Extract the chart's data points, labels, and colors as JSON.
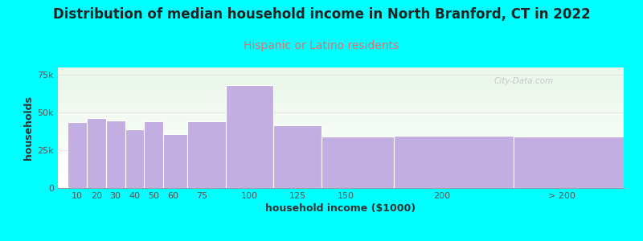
{
  "title": "Distribution of median household income in North Branford, CT in 2022",
  "subtitle": "Hispanic or Latino residents",
  "xlabel": "household income ($1000)",
  "ylabel": "households",
  "bar_color": "#c2aee0",
  "background_color": "#00ffff",
  "ylim": [
    0,
    80000
  ],
  "yticks": [
    0,
    25000,
    50000,
    75000
  ],
  "ytick_labels": [
    "0",
    "25k",
    "50k",
    "75k"
  ],
  "xtick_labels": [
    "10",
    "20",
    "30",
    "40",
    "50",
    "60",
    "75",
    "100",
    "125",
    "150",
    "200",
    "> 200"
  ],
  "bar_lefts": [
    5,
    15,
    25,
    35,
    45,
    55,
    67.5,
    87.5,
    112.5,
    137.5,
    175,
    237.5
  ],
  "bar_rights": [
    15,
    25,
    35,
    45,
    55,
    67.5,
    87.5,
    112.5,
    137.5,
    175,
    237.5,
    295
  ],
  "bar_values": [
    44000,
    46500,
    45000,
    39000,
    44500,
    36000,
    44500,
    68000,
    41500,
    34000,
    34500,
    34000
  ],
  "xtick_positions": [
    10,
    20,
    30,
    40,
    50,
    60,
    75,
    100,
    125,
    150,
    200,
    262.5
  ],
  "watermark": "City-Data.com",
  "title_fontsize": 12,
  "subtitle_fontsize": 10,
  "subtitle_color": "#e07070",
  "axis_label_fontsize": 9,
  "tick_fontsize": 8
}
